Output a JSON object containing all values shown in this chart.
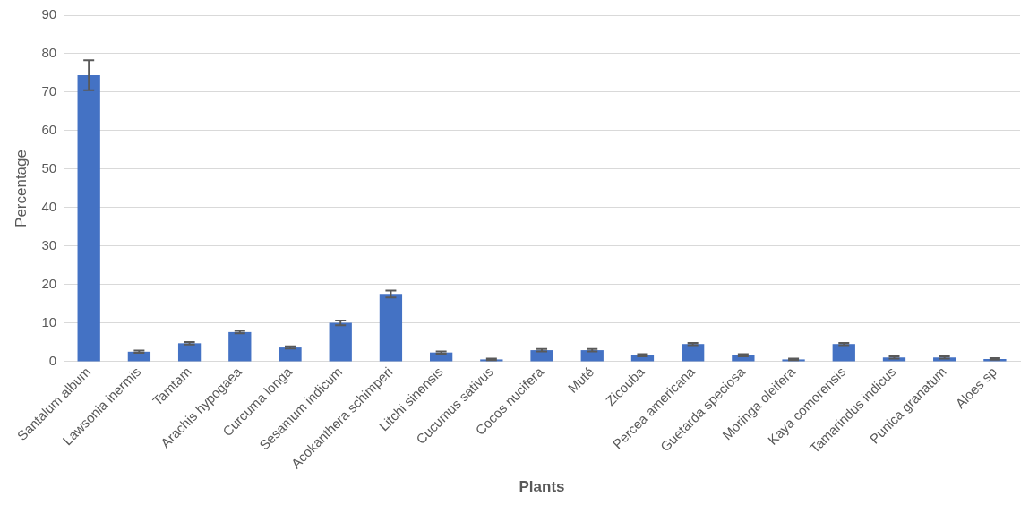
{
  "chart_data": {
    "type": "bar",
    "xlabel": "Plants",
    "ylabel": "Percentage",
    "categories": [
      "Santalum album",
      "Lawsonia inermis",
      "Tamtam",
      "Arachis hypogaea",
      "Curcuma longa",
      "Sesamum indicum",
      "Acokanthera schimperi",
      "Litchi sinensis",
      "Cucumus sativus",
      "Cocos nucifera",
      "Muté",
      "Zicouba",
      "Percea americana",
      "Guetarda speciosa",
      "Moringa oleifera",
      "Kaya comorensis",
      "Tamarindus indicus",
      "Punica granatum",
      "Aloes sp"
    ],
    "values": [
      74.4,
      2.6,
      4.8,
      7.7,
      3.7,
      10.1,
      17.6,
      2.4,
      0.6,
      3.0,
      3.0,
      1.7,
      4.6,
      1.7,
      0.6,
      4.6,
      1.1,
      1.1,
      0.7
    ],
    "errors": [
      3.9,
      0.3,
      0.3,
      0.3,
      0.3,
      0.6,
      0.9,
      0.3,
      0.2,
      0.3,
      0.3,
      0.3,
      0.3,
      0.3,
      0.2,
      0.3,
      0.3,
      0.3,
      0.2
    ],
    "color": "#4472c4",
    "ylim": [
      0,
      90
    ],
    "yticks": [
      0,
      10,
      20,
      30,
      40,
      50,
      60,
      70,
      80,
      90
    ],
    "grid": "y",
    "legend": false
  }
}
